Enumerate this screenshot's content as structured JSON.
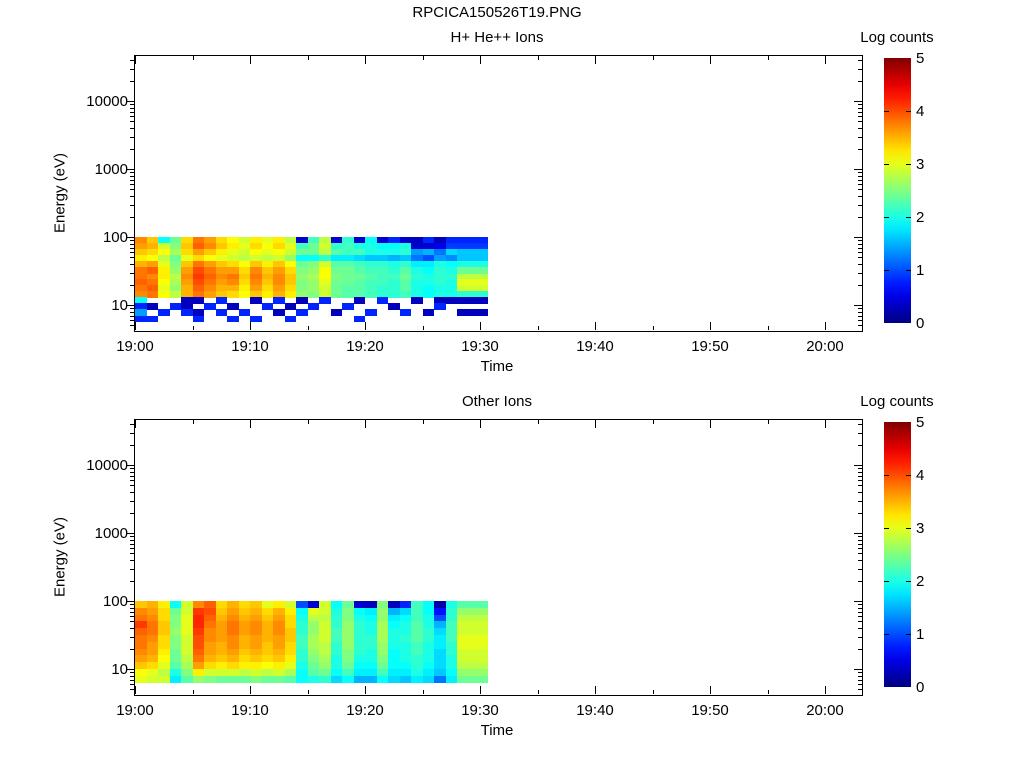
{
  "page": {
    "title": "RPCICA150526T19.PNG"
  },
  "chart_data": [
    {
      "type": "heatmap",
      "title": "H+ He++ Ions",
      "xlabel": "Time",
      "ylabel": "Energy (eV)",
      "x_tick_labels": [
        "19:00",
        "19:10",
        "19:20",
        "19:30",
        "19:40",
        "19:50",
        "20:00"
      ],
      "x_tick_minutes": [
        0,
        10,
        20,
        30,
        40,
        50,
        60
      ],
      "x_minor_minutes": [
        5,
        15,
        25,
        35,
        45,
        55
      ],
      "x_range_minutes": [
        0,
        63.2
      ],
      "time_start": "19:00",
      "y_scale": "log",
      "y_tick_labels": [
        "10",
        "100",
        "1000",
        "10000"
      ],
      "y_tick_values_ev": [
        10,
        100,
        1000,
        10000
      ],
      "y_range_ev": [
        4.3,
        47000
      ],
      "grid": false,
      "colorbar": {
        "label": "Log counts",
        "min": 0,
        "max": 5,
        "tick_labels": [
          "0",
          "1",
          "2",
          "3",
          "4",
          "5"
        ],
        "colormap": "jet",
        "position": "right"
      },
      "data_time_span": [
        "19:00",
        "19:31"
      ],
      "column_start_min": [
        0,
        1,
        2,
        3,
        4,
        5,
        6,
        7,
        8,
        9,
        10,
        11,
        12,
        13,
        14,
        15,
        16,
        17,
        18,
        19,
        20,
        21,
        22,
        23,
        24,
        25,
        26,
        27,
        28
      ],
      "column_width_min": [
        1,
        1,
        1,
        1,
        1,
        1,
        1,
        1,
        1,
        1,
        1,
        1,
        1,
        1,
        1,
        1,
        1,
        1,
        1,
        1,
        1,
        1,
        1,
        1,
        1,
        1,
        1,
        1,
        2.7
      ],
      "row_edges_ev": [
        100,
        81,
        66,
        54,
        44,
        36,
        29,
        24,
        19.5,
        16,
        13,
        10.6,
        8.6,
        7.0,
        5.7
      ],
      "no_data_value": -1,
      "values": [
        [
          3.7,
          3.6,
          3.4,
          3.2,
          3.5,
          3.8,
          3.8,
          3.9,
          3.8,
          3.7,
          1.9,
          0.8,
          1.4,
          0.8
        ],
        [
          3.4,
          3.5,
          3.3,
          3.1,
          3.6,
          3.9,
          3.7,
          3.8,
          3.9,
          3.8,
          -1,
          0.3,
          -1,
          0.8
        ],
        [
          1.9,
          2.9,
          3.1,
          2.8,
          3.0,
          3.2,
          3.2,
          3.1,
          3.0,
          3.1,
          -1,
          -1,
          0.8,
          -1
        ],
        [
          2.4,
          2.5,
          2.7,
          2.4,
          2.5,
          2.6,
          2.8,
          2.7,
          2.6,
          2.8,
          -1,
          0.8,
          -1,
          -1
        ],
        [
          3.3,
          3.4,
          3.3,
          3.0,
          3.4,
          3.6,
          3.7,
          3.6,
          3.5,
          3.5,
          0.3,
          0.3,
          0.8,
          -1
        ],
        [
          3.8,
          3.9,
          3.6,
          3.3,
          3.8,
          4.0,
          4.1,
          4.0,
          3.9,
          3.8,
          0.3,
          -1,
          0.3,
          0.8
        ],
        [
          3.6,
          3.7,
          3.4,
          3.1,
          3.6,
          3.8,
          3.9,
          3.8,
          3.7,
          3.6,
          -1,
          0.8,
          -1,
          -1
        ],
        [
          3.3,
          3.4,
          3.2,
          3.0,
          3.4,
          3.6,
          3.7,
          3.6,
          3.5,
          3.4,
          0.8,
          -1,
          0.8,
          -1
        ],
        [
          3.1,
          3.2,
          3.0,
          2.9,
          3.3,
          3.6,
          3.8,
          3.7,
          3.5,
          3.3,
          -1,
          0.3,
          -1,
          0.8
        ],
        [
          2.9,
          3.0,
          2.9,
          2.8,
          3.1,
          3.3,
          3.4,
          3.3,
          3.2,
          3.1,
          -1,
          -1,
          0.8,
          -1
        ],
        [
          3.2,
          3.3,
          3.1,
          2.9,
          3.4,
          3.7,
          3.8,
          3.7,
          3.6,
          3.4,
          0.3,
          -1,
          -1,
          0.8
        ],
        [
          3.0,
          3.1,
          3.0,
          2.8,
          3.2,
          3.4,
          3.5,
          3.4,
          3.3,
          3.2,
          -1,
          0.8,
          -1,
          -1
        ],
        [
          3.2,
          3.3,
          3.1,
          2.9,
          3.4,
          3.6,
          3.7,
          3.7,
          3.6,
          3.5,
          0.8,
          -1,
          0.3,
          -1
        ],
        [
          2.8,
          3.0,
          2.9,
          2.6,
          3.1,
          3.3,
          3.4,
          3.4,
          3.3,
          3.2,
          -1,
          0.3,
          -1,
          0.8
        ],
        [
          0.4,
          2.2,
          2.4,
          1.9,
          2.4,
          2.5,
          2.6,
          2.5,
          2.5,
          2.6,
          0.3,
          -1,
          0.8,
          -1
        ],
        [
          2.2,
          2.4,
          2.4,
          1.9,
          2.5,
          2.6,
          2.7,
          2.6,
          2.6,
          2.5,
          -1,
          0.8,
          -1,
          -1
        ],
        [
          2.8,
          2.9,
          2.8,
          2.1,
          2.9,
          3.1,
          3.1,
          3.0,
          2.9,
          2.9,
          0.8,
          -1,
          -1,
          -1
        ],
        [
          0.4,
          2.1,
          2.3,
          1.8,
          2.3,
          2.4,
          2.5,
          2.4,
          2.4,
          2.4,
          -1,
          -1,
          0.3,
          -1
        ],
        [
          2.1,
          2.2,
          2.2,
          1.8,
          2.3,
          2.4,
          2.4,
          2.4,
          2.3,
          2.3,
          -1,
          0.8,
          -1,
          -1
        ],
        [
          0.4,
          2.0,
          2.2,
          1.7,
          2.2,
          2.3,
          2.4,
          2.3,
          2.3,
          2.3,
          0.3,
          -1,
          -1,
          0.8
        ],
        [
          1.9,
          2.0,
          2.0,
          1.6,
          2.1,
          2.2,
          2.3,
          2.2,
          2.2,
          2.2,
          -1,
          -1,
          0.8,
          -1
        ],
        [
          0.4,
          1.9,
          2.0,
          1.6,
          2.1,
          2.2,
          2.2,
          2.2,
          2.1,
          2.1,
          0.8,
          -1,
          -1,
          -1
        ],
        [
          0.8,
          1.9,
          2.0,
          1.5,
          2.0,
          2.1,
          2.2,
          2.1,
          2.1,
          2.1,
          -1,
          0.3,
          -1,
          -1
        ],
        [
          0.4,
          2.0,
          2.1,
          1.6,
          2.1,
          2.3,
          2.4,
          2.3,
          2.3,
          2.2,
          -1,
          -1,
          0.8,
          -1
        ],
        [
          0.3,
          0.4,
          1.4,
          1.2,
          1.8,
          2.0,
          2.1,
          2.0,
          2.0,
          2.0,
          0.3,
          -1,
          -1,
          -1
        ],
        [
          0.8,
          0.4,
          1.5,
          1.0,
          1.8,
          1.9,
          2.0,
          2.0,
          1.9,
          1.9,
          -1,
          -1,
          0.3,
          -1
        ],
        [
          0.3,
          0.5,
          1.2,
          1.4,
          2.0,
          2.1,
          2.1,
          2.1,
          2.0,
          2.0,
          0.3,
          0.8,
          -1,
          -1
        ],
        [
          0.8,
          0.9,
          1.7,
          1.3,
          1.9,
          2.0,
          2.1,
          2.0,
          2.0,
          2.0,
          0.3,
          -1,
          -1,
          -1
        ],
        [
          0.8,
          0.9,
          1.6,
          1.6,
          2.0,
          2.4,
          2.8,
          3.0,
          2.9,
          2.1,
          0.3,
          -1,
          0.3,
          -1
        ]
      ]
    },
    {
      "type": "heatmap",
      "title": "Other Ions",
      "xlabel": "Time",
      "ylabel": "Energy (eV)",
      "x_tick_labels": [
        "19:00",
        "19:10",
        "19:20",
        "19:30",
        "19:40",
        "19:50",
        "20:00"
      ],
      "x_tick_minutes": [
        0,
        10,
        20,
        30,
        40,
        50,
        60
      ],
      "x_minor_minutes": [
        5,
        15,
        25,
        35,
        45,
        55
      ],
      "x_range_minutes": [
        0,
        63.2
      ],
      "time_start": "19:00",
      "y_scale": "log",
      "y_tick_labels": [
        "10",
        "100",
        "1000",
        "10000"
      ],
      "y_tick_values_ev": [
        10,
        100,
        1000,
        10000
      ],
      "y_range_ev": [
        4.3,
        47000
      ],
      "grid": false,
      "colorbar": {
        "label": "Log counts",
        "min": 0,
        "max": 5,
        "tick_labels": [
          "0",
          "1",
          "2",
          "3",
          "4",
          "5"
        ],
        "colormap": "jet",
        "position": "right"
      },
      "data_time_span": [
        "19:00",
        "19:31"
      ],
      "column_start_min": [
        0,
        1,
        2,
        3,
        4,
        5,
        6,
        7,
        8,
        9,
        10,
        11,
        12,
        13,
        14,
        15,
        16,
        17,
        18,
        19,
        20,
        21,
        22,
        23,
        24,
        25,
        26,
        27,
        28
      ],
      "column_width_min": [
        1,
        1,
        1,
        1,
        1,
        1,
        1,
        1,
        1,
        1,
        1,
        1,
        1,
        1,
        1,
        1,
        1,
        1,
        1,
        1,
        1,
        1,
        1,
        1,
        1,
        1,
        1,
        1,
        2.7
      ],
      "row_edges_ev": [
        100,
        79.4,
        63,
        50,
        39.8,
        31.6,
        25.1,
        20,
        15.8,
        12.6,
        10,
        7.9,
        6.3
      ],
      "no_data_value": -1,
      "values": [
        [
          3.4,
          3.7,
          3.8,
          4.1,
          3.9,
          3.8,
          3.8,
          3.7,
          3.6,
          3.4,
          3.1,
          3.0
        ],
        [
          3.5,
          3.6,
          3.7,
          3.8,
          3.8,
          3.7,
          3.6,
          3.6,
          3.5,
          3.3,
          3.0,
          2.9
        ],
        [
          3.2,
          3.3,
          3.3,
          3.4,
          3.4,
          3.3,
          3.3,
          3.2,
          3.1,
          3.0,
          2.8,
          2.9
        ],
        [
          1.9,
          2.4,
          2.5,
          2.5,
          2.6,
          2.5,
          2.5,
          2.4,
          2.4,
          2.3,
          2.0,
          1.8
        ],
        [
          2.9,
          2.9,
          3.0,
          3.0,
          3.0,
          2.9,
          2.9,
          2.9,
          2.8,
          2.7,
          2.5,
          2.3
        ],
        [
          3.7,
          4.1,
          4.2,
          4.2,
          4.1,
          4.0,
          4.0,
          3.9,
          3.8,
          3.6,
          3.2,
          2.6
        ],
        [
          3.9,
          4.0,
          3.9,
          3.8,
          3.7,
          3.7,
          3.6,
          3.6,
          3.5,
          3.3,
          2.9,
          2.5
        ],
        [
          3.3,
          3.4,
          3.5,
          3.6,
          3.6,
          3.6,
          3.5,
          3.5,
          3.4,
          3.2,
          2.9,
          2.4
        ],
        [
          3.5,
          3.6,
          3.7,
          3.8,
          3.8,
          3.7,
          3.7,
          3.6,
          3.5,
          3.3,
          2.9,
          2.4
        ],
        [
          3.3,
          3.4,
          3.5,
          3.6,
          3.6,
          3.5,
          3.5,
          3.4,
          3.3,
          3.2,
          2.8,
          2.4
        ],
        [
          3.4,
          3.5,
          3.6,
          3.7,
          3.7,
          3.6,
          3.6,
          3.5,
          3.4,
          3.2,
          2.9,
          2.5
        ],
        [
          3.0,
          3.3,
          3.4,
          3.5,
          3.5,
          3.5,
          3.4,
          3.4,
          3.3,
          3.1,
          2.8,
          2.4
        ],
        [
          3.2,
          3.5,
          3.6,
          3.7,
          3.7,
          3.6,
          3.6,
          3.5,
          3.4,
          3.2,
          2.9,
          2.4
        ],
        [
          2.9,
          3.2,
          3.3,
          3.3,
          3.4,
          3.4,
          3.3,
          3.3,
          3.2,
          3.0,
          2.7,
          2.3
        ],
        [
          1.0,
          1.9,
          2.0,
          2.1,
          2.1,
          2.2,
          2.2,
          2.1,
          2.1,
          2.0,
          1.9,
          1.9
        ],
        [
          0.4,
          3.0,
          2.8,
          2.6,
          2.6,
          2.7,
          2.7,
          2.6,
          2.5,
          2.4,
          2.3,
          2.0
        ],
        [
          2.9,
          2.9,
          2.8,
          2.9,
          2.9,
          2.9,
          2.8,
          2.8,
          2.7,
          2.6,
          2.4,
          2.1
        ],
        [
          1.9,
          2.0,
          2.1,
          2.1,
          2.2,
          2.2,
          2.1,
          2.1,
          2.0,
          2.0,
          1.9,
          1.7
        ],
        [
          2.4,
          2.5,
          2.5,
          2.6,
          2.6,
          2.6,
          2.6,
          2.5,
          2.5,
          2.4,
          2.2,
          1.9
        ],
        [
          0.4,
          1.9,
          2.0,
          2.1,
          2.1,
          2.1,
          2.1,
          2.1,
          2.0,
          1.9,
          1.8,
          1.5
        ],
        [
          0.3,
          1.8,
          1.9,
          2.0,
          2.0,
          2.1,
          2.1,
          2.0,
          2.0,
          1.9,
          1.8,
          1.5
        ],
        [
          2.5,
          2.6,
          2.6,
          2.7,
          2.7,
          2.7,
          2.6,
          2.6,
          2.5,
          2.4,
          2.2,
          1.9
        ],
        [
          0.3,
          1.5,
          1.8,
          1.9,
          2.0,
          2.0,
          2.0,
          1.9,
          1.9,
          1.9,
          1.8,
          1.7
        ],
        [
          0.8,
          1.7,
          1.9,
          2.0,
          2.0,
          2.1,
          2.0,
          2.0,
          2.0,
          1.9,
          1.8,
          1.6
        ],
        [
          2.2,
          2.2,
          2.2,
          2.3,
          2.3,
          2.3,
          2.2,
          2.2,
          2.1,
          2.1,
          2.0,
          1.8
        ],
        [
          1.9,
          1.9,
          2.0,
          2.0,
          2.1,
          2.1,
          2.0,
          2.0,
          2.0,
          1.9,
          1.8,
          1.7
        ],
        [
          0.2,
          0.7,
          1.0,
          1.5,
          1.7,
          1.8,
          1.8,
          1.7,
          1.7,
          1.7,
          1.6,
          1.2
        ],
        [
          2.0,
          2.1,
          2.1,
          2.2,
          2.2,
          2.2,
          2.1,
          2.1,
          2.0,
          2.0,
          1.9,
          1.8
        ],
        [
          2.3,
          2.6,
          2.8,
          2.9,
          2.9,
          3.0,
          3.0,
          2.9,
          2.9,
          2.8,
          2.6,
          2.4
        ]
      ]
    }
  ]
}
